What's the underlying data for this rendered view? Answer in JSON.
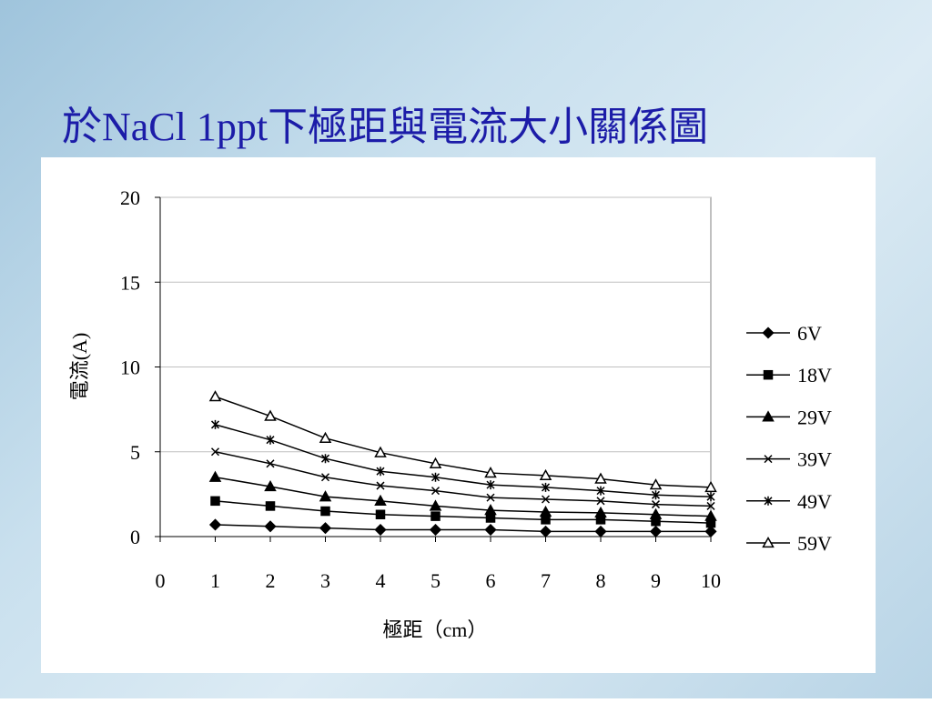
{
  "chart_data": {
    "type": "line",
    "title": "於NaCl 1ppt下極距與電流大小關係圖",
    "x_label": "極距（cm）",
    "y_label": "電流(A)",
    "x": [
      1,
      2,
      3,
      4,
      5,
      6,
      7,
      8,
      9,
      10
    ],
    "xlim": [
      0,
      10
    ],
    "xticks": [
      0,
      1,
      2,
      3,
      4,
      5,
      6,
      7,
      8,
      9,
      10
    ],
    "ylim": [
      0,
      20
    ],
    "yticks": [
      0,
      5,
      10,
      15,
      20
    ],
    "grid": true,
    "legend": "right",
    "series": [
      {
        "name": "6V",
        "color": "#000000",
        "marker": "diamond",
        "values": [
          0.7,
          0.6,
          0.5,
          0.4,
          0.4,
          0.4,
          0.3,
          0.3,
          0.3,
          0.3
        ]
      },
      {
        "name": "18V",
        "color": "#000000",
        "marker": "square",
        "values": [
          2.1,
          1.8,
          1.5,
          1.3,
          1.2,
          1.1,
          1.0,
          1.0,
          0.9,
          0.8
        ]
      },
      {
        "name": "29V",
        "color": "#000000",
        "marker": "triangle",
        "values": [
          3.5,
          2.95,
          2.35,
          2.1,
          1.8,
          1.55,
          1.45,
          1.4,
          1.3,
          1.2
        ]
      },
      {
        "name": "39V",
        "color": "#000000",
        "marker": "x",
        "values": [
          5.0,
          4.3,
          3.5,
          3.0,
          2.7,
          2.3,
          2.2,
          2.1,
          1.9,
          1.8
        ]
      },
      {
        "name": "49V",
        "color": "#000000",
        "marker": "star",
        "values": [
          6.6,
          5.7,
          4.6,
          3.85,
          3.5,
          3.05,
          2.9,
          2.7,
          2.45,
          2.35
        ]
      },
      {
        "name": "59V",
        "color": "#000000",
        "marker": "triangle-open",
        "values": [
          8.25,
          7.1,
          5.8,
          4.95,
          4.3,
          3.75,
          3.6,
          3.4,
          3.05,
          2.9
        ]
      }
    ]
  }
}
